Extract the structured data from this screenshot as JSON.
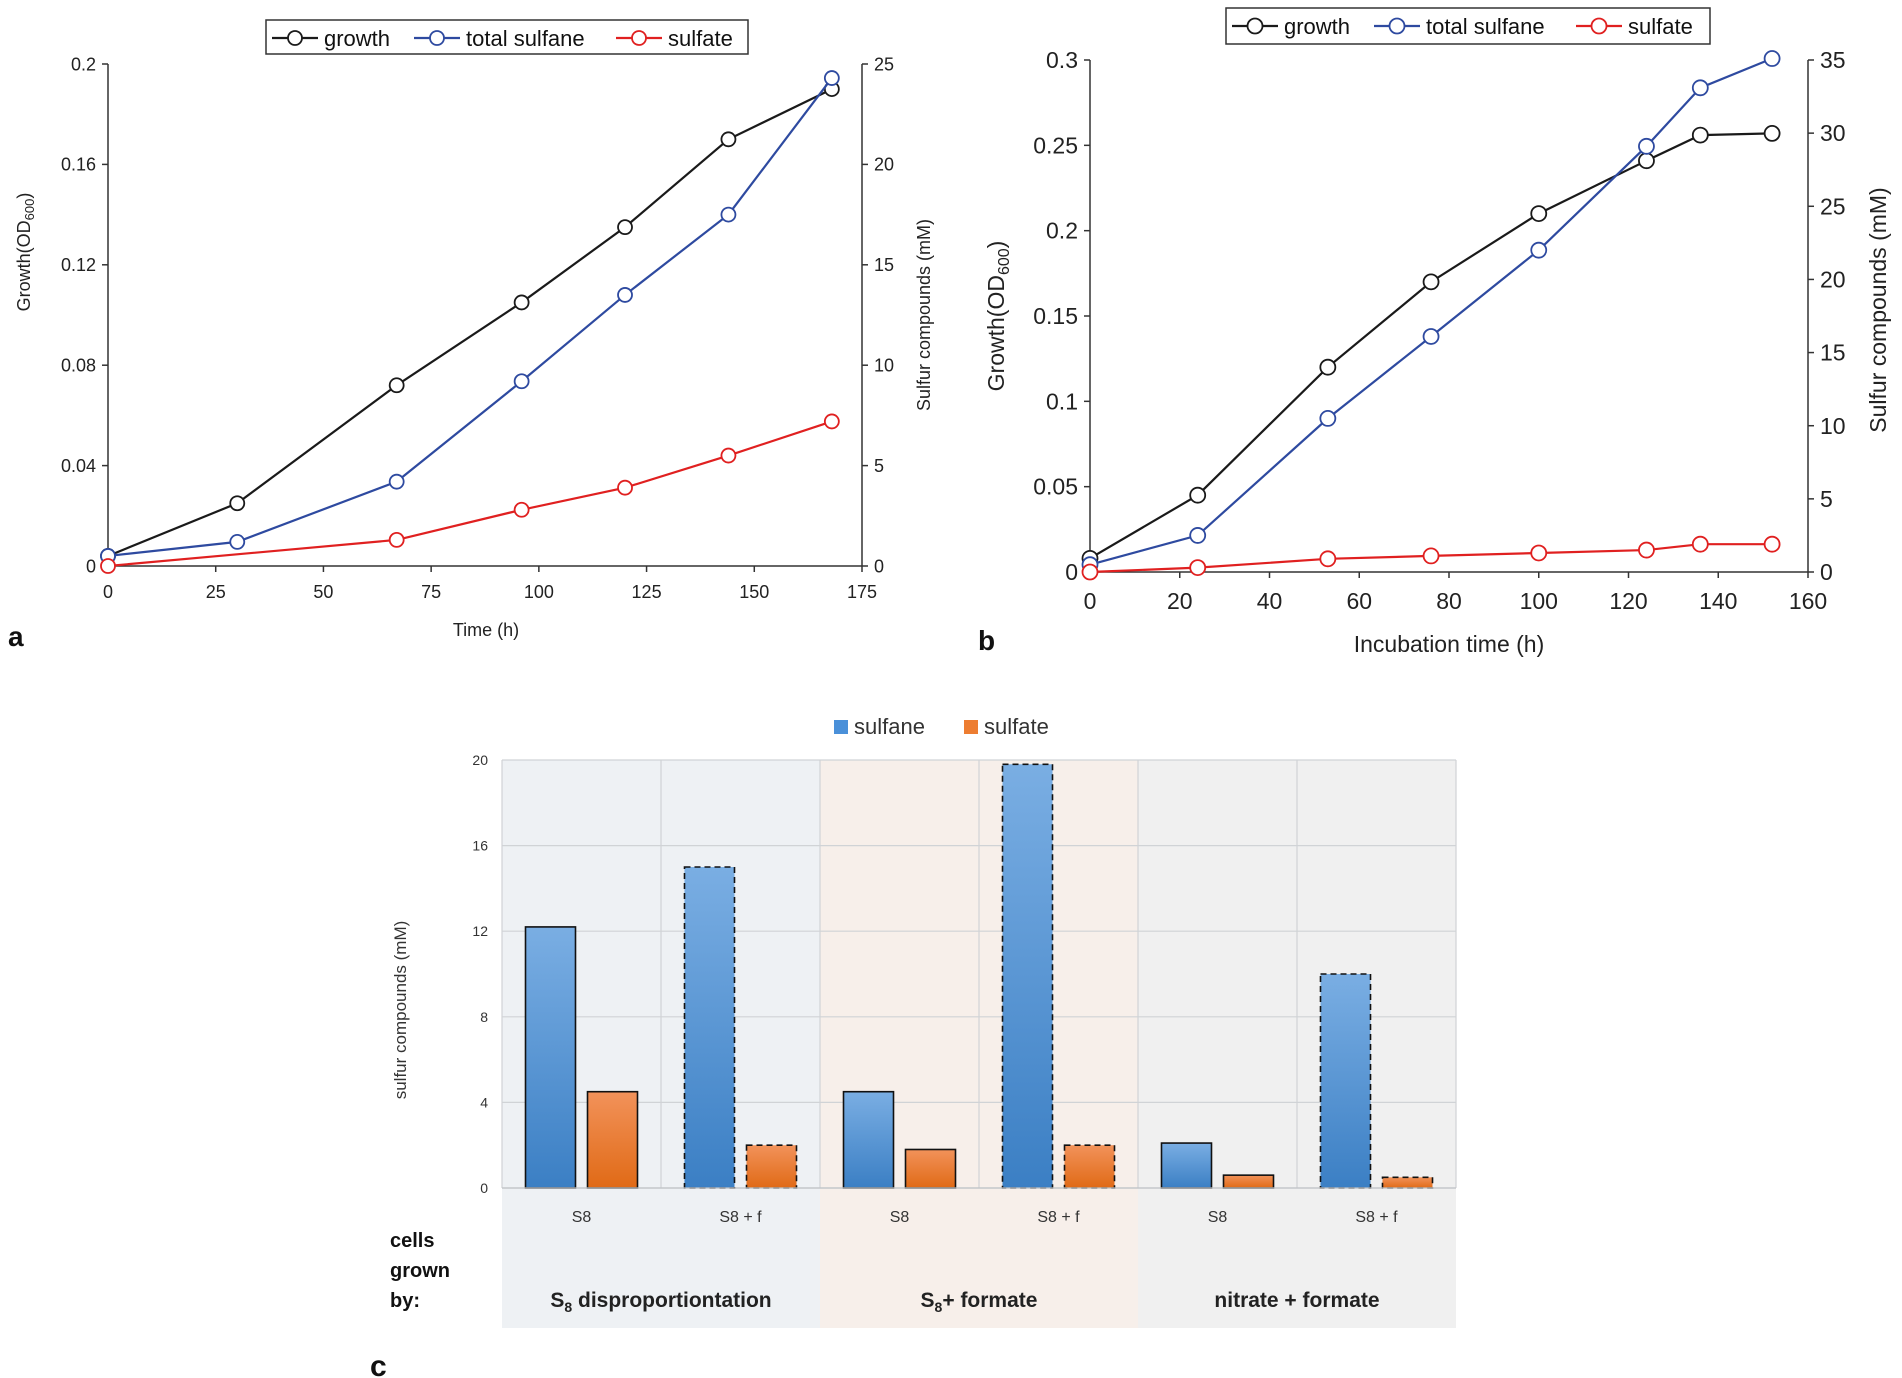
{
  "chart_data": [
    {
      "type": "line",
      "panel_label": "a",
      "xlabel": "Time (h)",
      "ylabel_left": "Growth(OD",
      "ylabel_left_sub": "600",
      "ylabel_left_end": ")",
      "ylabel_right": "Sulfur compounds (mM)",
      "xlim": [
        0,
        175
      ],
      "ylim_left": [
        0,
        0.2
      ],
      "ylim_right": [
        0,
        25
      ],
      "xticks": [
        "0",
        "25",
        "50",
        "75",
        "100",
        "125",
        "150",
        "175"
      ],
      "yticks_left": [
        "0",
        "0.04",
        "0.08",
        "0.12",
        "0.16",
        "0.2"
      ],
      "yticks_right": [
        "0",
        "5",
        "10",
        "15",
        "20",
        "25"
      ],
      "legend": [
        "growth",
        "total sulfane",
        "sulfate"
      ],
      "series": [
        {
          "name": "growth",
          "axis": "left",
          "color": "#1a1a1a",
          "x": [
            0,
            30,
            67,
            96,
            120,
            144,
            168
          ],
          "y": [
            0.004,
            0.025,
            0.072,
            0.105,
            0.135,
            0.17,
            0.19
          ]
        },
        {
          "name": "total sulfane",
          "axis": "right",
          "color": "#2e4aa0",
          "x": [
            0,
            30,
            67,
            96,
            120,
            144,
            168
          ],
          "y": [
            0.5,
            1.2,
            4.2,
            9.2,
            13.5,
            17.5,
            24.3
          ]
        },
        {
          "name": "sulfate",
          "axis": "right",
          "color": "#e02020",
          "x": [
            0,
            67,
            96,
            120,
            144,
            168
          ],
          "y": [
            0,
            1.3,
            2.8,
            3.9,
            5.5,
            7.2
          ]
        }
      ]
    },
    {
      "type": "line",
      "panel_label": "b",
      "xlabel": "Incubation time (h)",
      "ylabel_left": "Growth(OD",
      "ylabel_left_sub": "600",
      "ylabel_left_end": ")",
      "ylabel_right": "Sulfur compounds (mM)",
      "xlim": [
        0,
        160
      ],
      "ylim_left": [
        0,
        0.3
      ],
      "ylim_right": [
        0,
        35
      ],
      "xticks": [
        "0",
        "20",
        "40",
        "60",
        "80",
        "100",
        "120",
        "140",
        "160"
      ],
      "yticks_left": [
        "0",
        "0.05",
        "0.1",
        "0.15",
        "0.2",
        "0.25",
        "0.3"
      ],
      "yticks_right": [
        "0",
        "5",
        "10",
        "15",
        "20",
        "25",
        "30",
        "35"
      ],
      "legend": [
        "growth",
        "total sulfane",
        "sulfate"
      ],
      "series": [
        {
          "name": "growth",
          "axis": "left",
          "color": "#1a1a1a",
          "x": [
            0,
            24,
            53,
            76,
            100,
            124,
            136,
            152
          ],
          "y": [
            0.008,
            0.045,
            0.12,
            0.17,
            0.21,
            0.241,
            0.256,
            0.257
          ]
        },
        {
          "name": "total sulfane",
          "axis": "right",
          "color": "#2e4aa0",
          "x": [
            0,
            24,
            53,
            76,
            100,
            124,
            136,
            152
          ],
          "y": [
            0.5,
            2.5,
            10.5,
            16.1,
            22.0,
            29.1,
            33.1,
            35.1
          ]
        },
        {
          "name": "sulfate",
          "axis": "right",
          "color": "#e02020",
          "x": [
            0,
            24,
            53,
            76,
            100,
            124,
            136,
            152
          ],
          "y": [
            0,
            0.3,
            0.9,
            1.1,
            1.3,
            1.5,
            1.9,
            1.9
          ]
        }
      ]
    },
    {
      "type": "bar",
      "panel_label": "c",
      "ylabel": "sulfur compounds (mM)",
      "ylim": [
        0,
        20
      ],
      "yticks": [
        "0",
        "4",
        "8",
        "12",
        "16",
        "20"
      ],
      "legend": [
        "sulfane",
        "sulfate"
      ],
      "categories": [
        "S8",
        "S8 + f",
        "S8",
        "S8 + f",
        "S8",
        "S8 + f"
      ],
      "dashed": [
        false,
        true,
        false,
        true,
        false,
        true
      ],
      "series": [
        {
          "name": "sulfane",
          "color": "#4a90d9",
          "values": [
            12.2,
            15.0,
            4.5,
            19.8,
            2.1,
            10.0
          ]
        },
        {
          "name": "sulfate",
          "color": "#ed7d31",
          "values": [
            4.5,
            2.0,
            1.8,
            2.0,
            0.6,
            0.5
          ]
        }
      ],
      "row_label": [
        "cells",
        "grown",
        "by:"
      ],
      "groups": [
        {
          "pre": "S",
          "sub": "8",
          "post": " disproportiontation",
          "bg": "#eef1f4"
        },
        {
          "pre": "S",
          "sub": "8",
          "post": "+ formate",
          "bg": "#f7efea"
        },
        {
          "pre": "",
          "sub": "",
          "post": "nitrate + formate",
          "bg": "#f0f0f0"
        }
      ]
    }
  ]
}
